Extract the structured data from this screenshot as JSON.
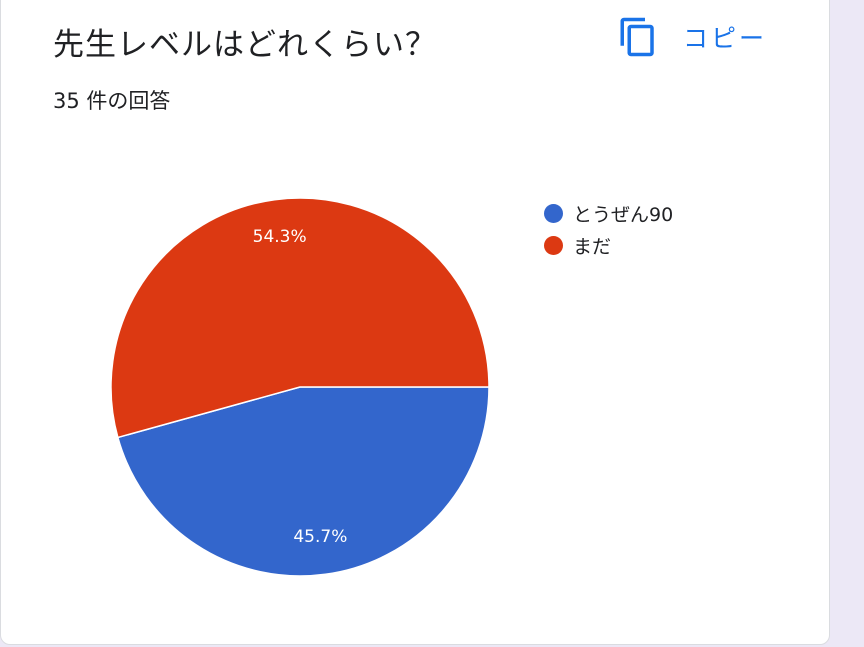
{
  "card": {
    "title": "先生レベルはどれくらい？",
    "subtitle": "35 件の回答",
    "copy_label": "コピー",
    "copy_icon": "copy-icon",
    "accent_color": "#1a73e8"
  },
  "chart_data": {
    "type": "pie",
    "title": "先生レベルはどれくらい？",
    "total_responses": 35,
    "legend_position": "right",
    "slices": [
      {
        "label": "とうぜん90",
        "value": 45.7,
        "display": "45.7%",
        "color": "#3366cc"
      },
      {
        "label": "まだ",
        "value": 54.3,
        "display": "54.3%",
        "color": "#dc3912"
      }
    ]
  }
}
